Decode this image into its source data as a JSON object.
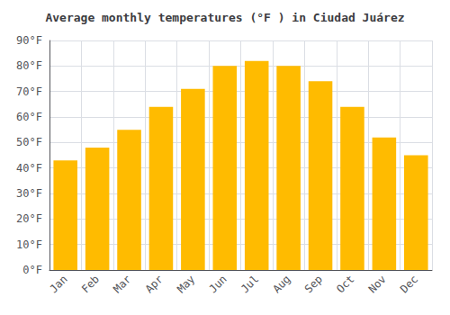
{
  "chart_data": {
    "type": "bar",
    "title": "Average monthly temperatures (°F ) in Ciudad Juárez",
    "categories": [
      "Jan",
      "Feb",
      "Mar",
      "Apr",
      "May",
      "Jun",
      "Jul",
      "Aug",
      "Sep",
      "Oct",
      "Nov",
      "Dec"
    ],
    "values": [
      43,
      48,
      55,
      64,
      71,
      80,
      82,
      80,
      74,
      64,
      52,
      45
    ],
    "color": "#FFBB00",
    "ylim": [
      0,
      90
    ],
    "yticks": [
      {
        "value": 0,
        "label": "0°F"
      },
      {
        "value": 10,
        "label": "10°F"
      },
      {
        "value": 20,
        "label": "20°F"
      },
      {
        "value": 30,
        "label": "30°F"
      },
      {
        "value": 40,
        "label": "40°F"
      },
      {
        "value": 50,
        "label": "50°F"
      },
      {
        "value": 60,
        "label": "60°F"
      },
      {
        "value": 70,
        "label": "70°F"
      },
      {
        "value": 80,
        "label": "80°F"
      },
      {
        "value": 90,
        "label": "90°F"
      }
    ],
    "grid": true
  }
}
